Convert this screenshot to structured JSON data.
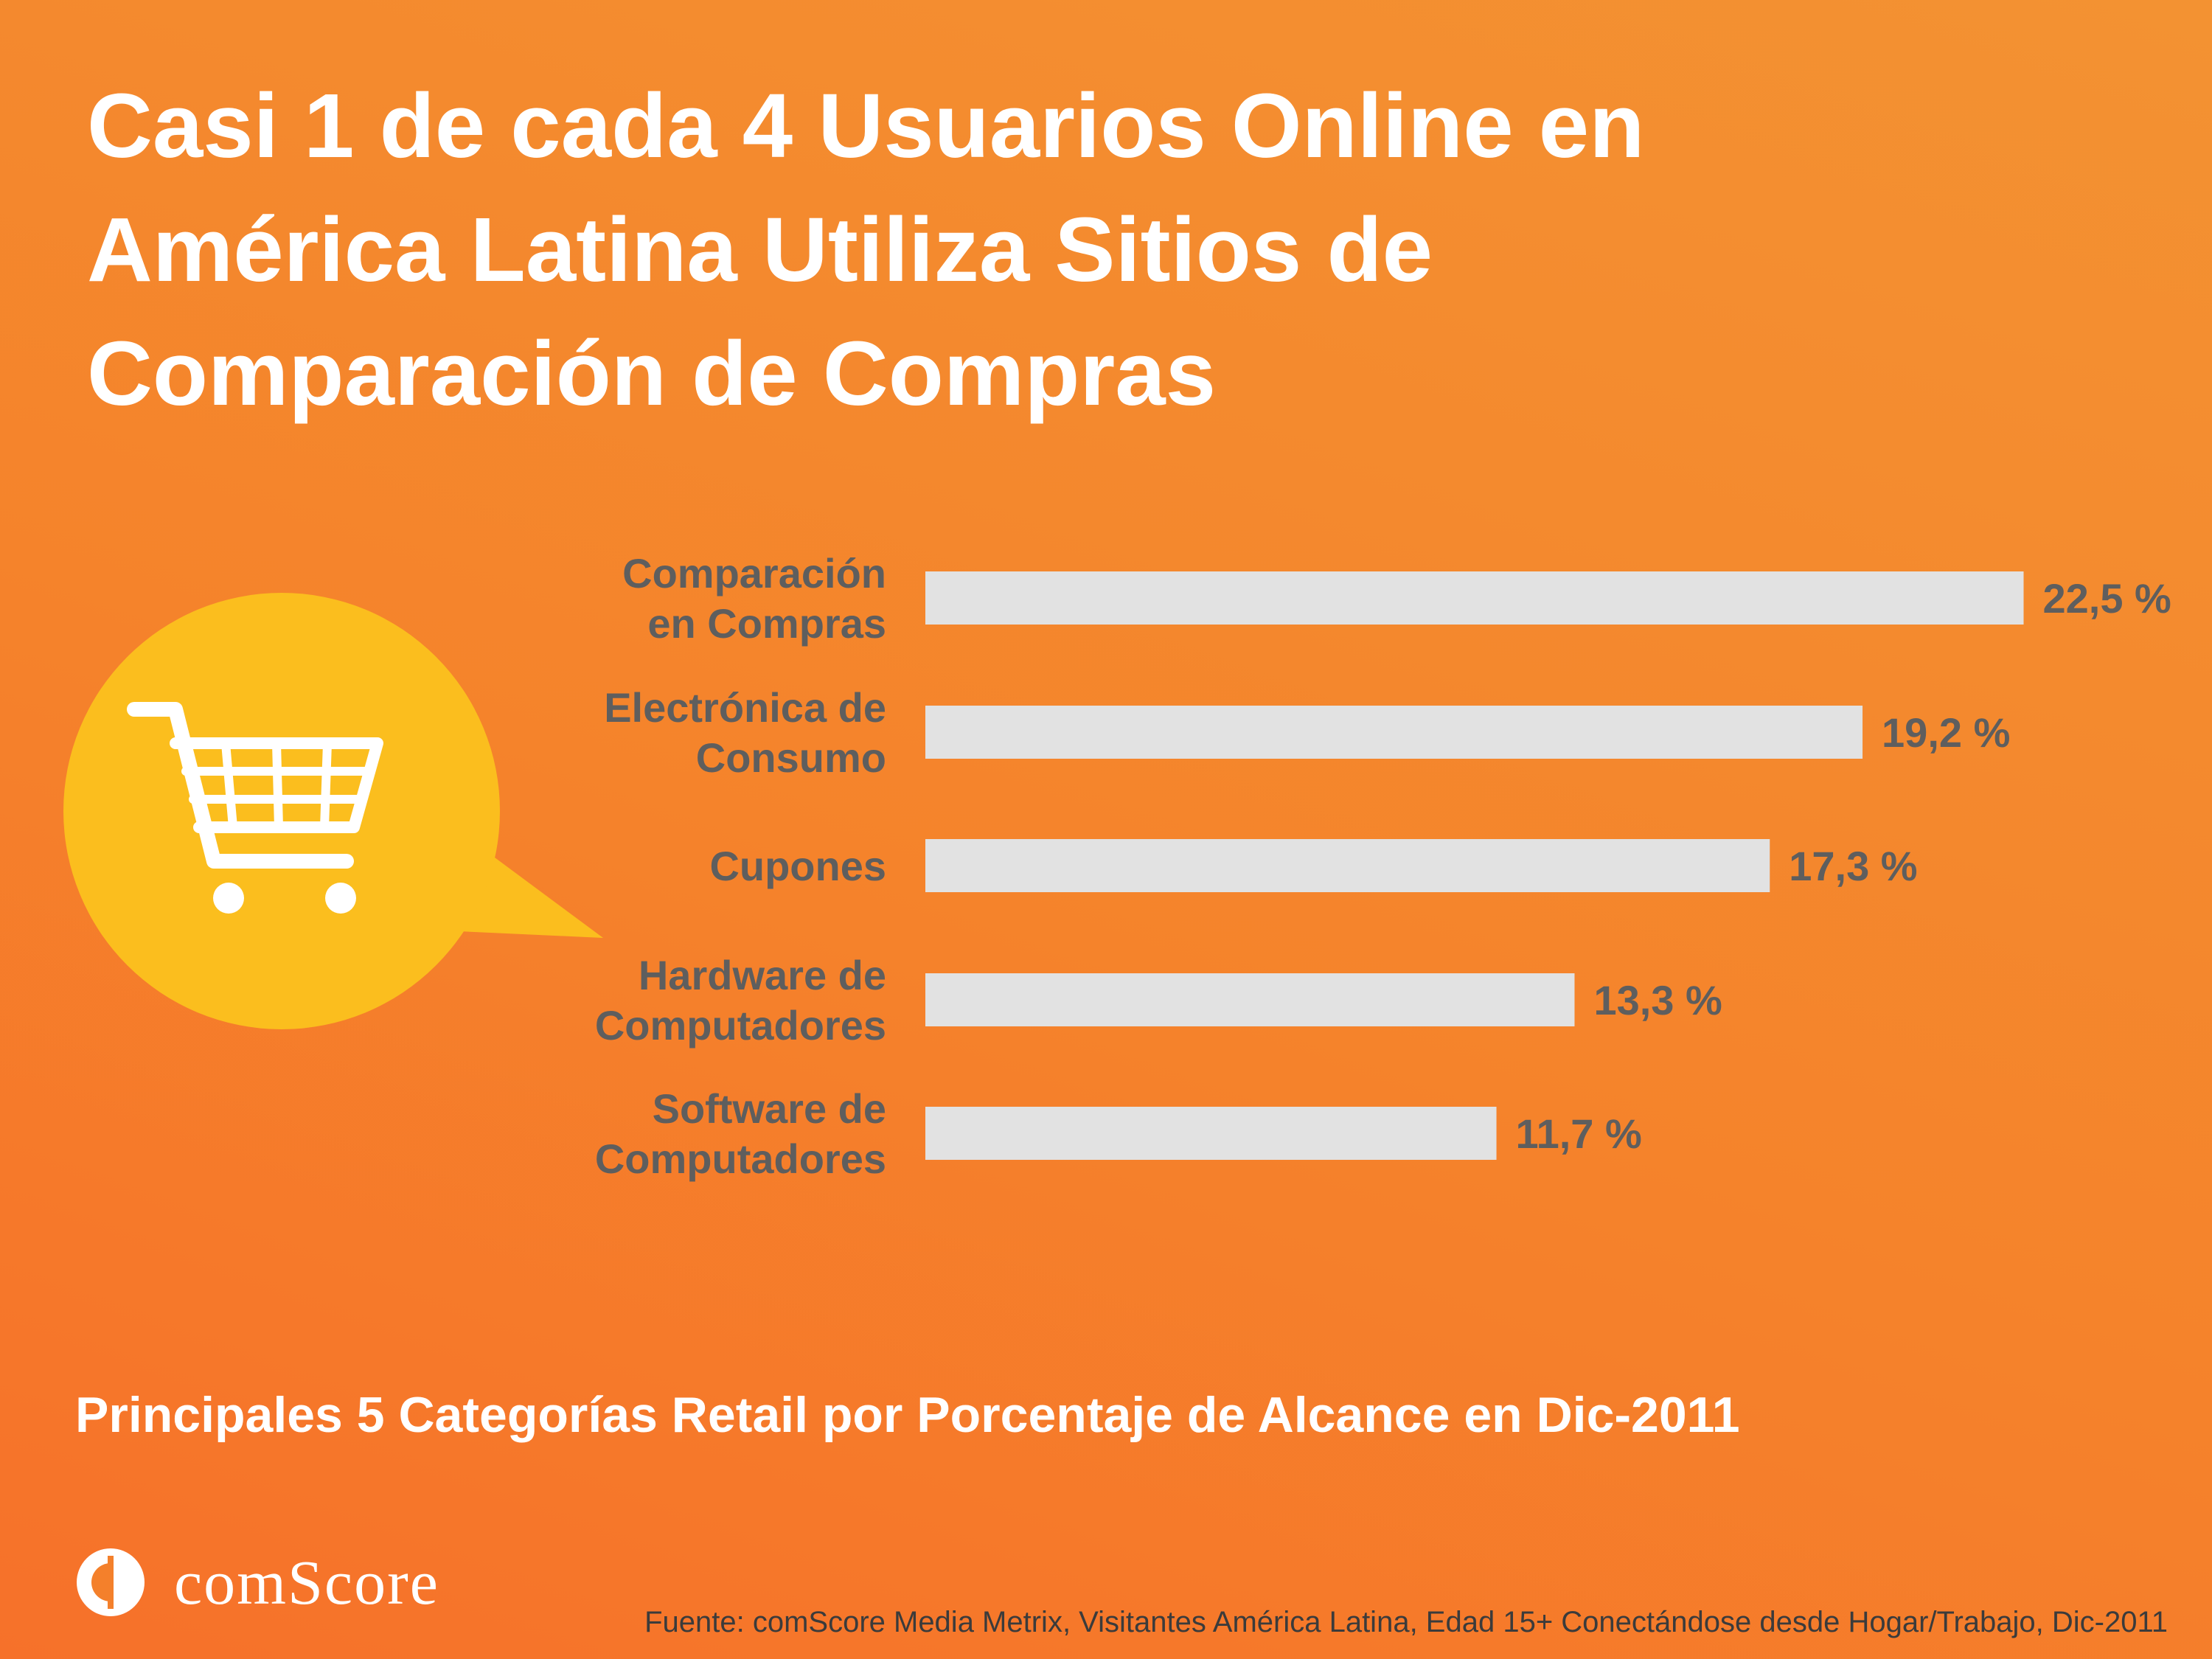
{
  "header": {
    "title_lines": [
      "Casi 1 de cada 4 Usuarios Online en",
      "América Latina Utiliza Sitios de",
      "Comparación de Compras"
    ]
  },
  "chart_data": {
    "type": "bar",
    "orientation": "horizontal",
    "categories": [
      [
        "Comparación",
        "en Compras"
      ],
      [
        "Electrónica de",
        "Consumo"
      ],
      [
        "Cupones"
      ],
      [
        "Hardware de",
        "Computadores"
      ],
      [
        "Software de",
        "Computadores"
      ]
    ],
    "values": [
      22.5,
      19.2,
      17.3,
      13.3,
      11.7
    ],
    "value_labels": [
      "22,5 %",
      "19,2 %",
      "17,3 %",
      "13,3 %",
      "11,7 %"
    ],
    "unit": "%",
    "grid": false,
    "colors": {
      "bar": "#e2e2e2",
      "text": "#5e5e5e"
    }
  },
  "footer": {
    "subtitle": "Principales 5 Categorías Retail por Porcentaje de Alcance en Dic-2011",
    "logo_text": "comScore",
    "source": "Fuente: comScore Media Metrix, Visitantes América Latina, Edad 15+ Conectándose desde Hogar/Trabajo, Dic-2011"
  },
  "illustration": {
    "icon": "shopping-cart-icon",
    "bubble_color": "#fbbe1e"
  }
}
